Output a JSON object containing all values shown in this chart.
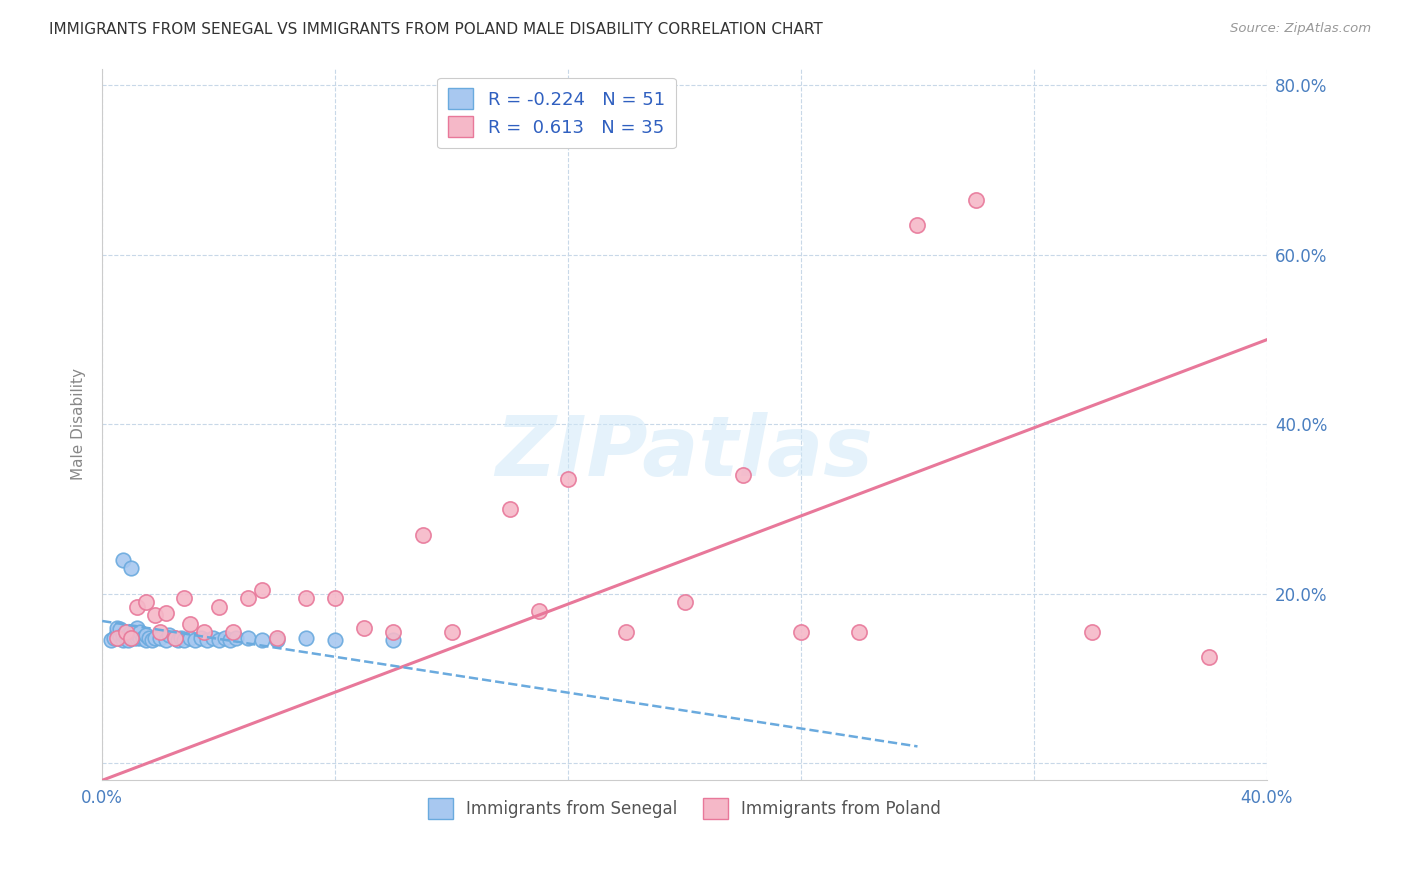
{
  "title": "IMMIGRANTS FROM SENEGAL VS IMMIGRANTS FROM POLAND MALE DISABILITY CORRELATION CHART",
  "source": "Source: ZipAtlas.com",
  "ylabel": "Male Disability",
  "y_ticks": [
    0.0,
    0.2,
    0.4,
    0.6,
    0.8
  ],
  "y_tick_labels": [
    "",
    "20.0%",
    "40.0%",
    "60.0%",
    "80.0%"
  ],
  "x_ticks": [
    0.0,
    0.08,
    0.16,
    0.24,
    0.32,
    0.4
  ],
  "x_tick_labels": [
    "0.0%",
    "",
    "",
    "",
    "",
    "40.0%"
  ],
  "xlim": [
    0.0,
    0.4
  ],
  "ylim": [
    -0.02,
    0.82
  ],
  "senegal_R": -0.224,
  "senegal_N": 51,
  "poland_R": 0.613,
  "poland_N": 35,
  "senegal_color": "#a8c8f0",
  "poland_color": "#f5b8c8",
  "senegal_edge_color": "#6aaade",
  "poland_edge_color": "#e8789a",
  "senegal_line_color": "#6aaade",
  "poland_line_color": "#e8789a",
  "background_color": "#ffffff",
  "watermark": "ZIPatlas",
  "senegal_points_x": [
    0.003,
    0.004,
    0.005,
    0.005,
    0.006,
    0.006,
    0.007,
    0.007,
    0.007,
    0.008,
    0.008,
    0.009,
    0.009,
    0.01,
    0.01,
    0.01,
    0.011,
    0.011,
    0.012,
    0.012,
    0.012,
    0.013,
    0.013,
    0.014,
    0.015,
    0.015,
    0.016,
    0.017,
    0.018,
    0.02,
    0.022,
    0.023,
    0.025,
    0.026,
    0.027,
    0.028,
    0.03,
    0.032,
    0.034,
    0.036,
    0.038,
    0.04,
    0.042,
    0.044,
    0.046,
    0.05,
    0.055,
    0.06,
    0.07,
    0.08,
    0.1
  ],
  "senegal_points_y": [
    0.145,
    0.148,
    0.155,
    0.16,
    0.15,
    0.158,
    0.145,
    0.152,
    0.24,
    0.148,
    0.155,
    0.145,
    0.152,
    0.148,
    0.155,
    0.23,
    0.148,
    0.155,
    0.148,
    0.153,
    0.16,
    0.148,
    0.155,
    0.148,
    0.145,
    0.152,
    0.148,
    0.145,
    0.148,
    0.148,
    0.145,
    0.152,
    0.148,
    0.145,
    0.148,
    0.145,
    0.148,
    0.145,
    0.148,
    0.145,
    0.148,
    0.145,
    0.148,
    0.145,
    0.148,
    0.148,
    0.145,
    0.145,
    0.148,
    0.145,
    0.145
  ],
  "poland_points_x": [
    0.005,
    0.008,
    0.01,
    0.012,
    0.015,
    0.018,
    0.02,
    0.022,
    0.025,
    0.028,
    0.03,
    0.035,
    0.04,
    0.045,
    0.05,
    0.055,
    0.06,
    0.07,
    0.08,
    0.09,
    0.1,
    0.11,
    0.12,
    0.14,
    0.15,
    0.16,
    0.18,
    0.2,
    0.22,
    0.24,
    0.26,
    0.28,
    0.3,
    0.34,
    0.38
  ],
  "poland_points_y": [
    0.148,
    0.155,
    0.148,
    0.185,
    0.19,
    0.175,
    0.155,
    0.178,
    0.148,
    0.195,
    0.165,
    0.155,
    0.185,
    0.155,
    0.195,
    0.205,
    0.148,
    0.195,
    0.195,
    0.16,
    0.155,
    0.27,
    0.155,
    0.3,
    0.18,
    0.335,
    0.155,
    0.19,
    0.34,
    0.155,
    0.155,
    0.635,
    0.665,
    0.155,
    0.125
  ],
  "poland_line_x0": 0.0,
  "poland_line_y0": -0.02,
  "poland_line_x1": 0.4,
  "poland_line_y1": 0.5,
  "senegal_line_x0": 0.0,
  "senegal_line_y0": 0.168,
  "senegal_line_x1": 0.28,
  "senegal_line_y1": 0.02
}
